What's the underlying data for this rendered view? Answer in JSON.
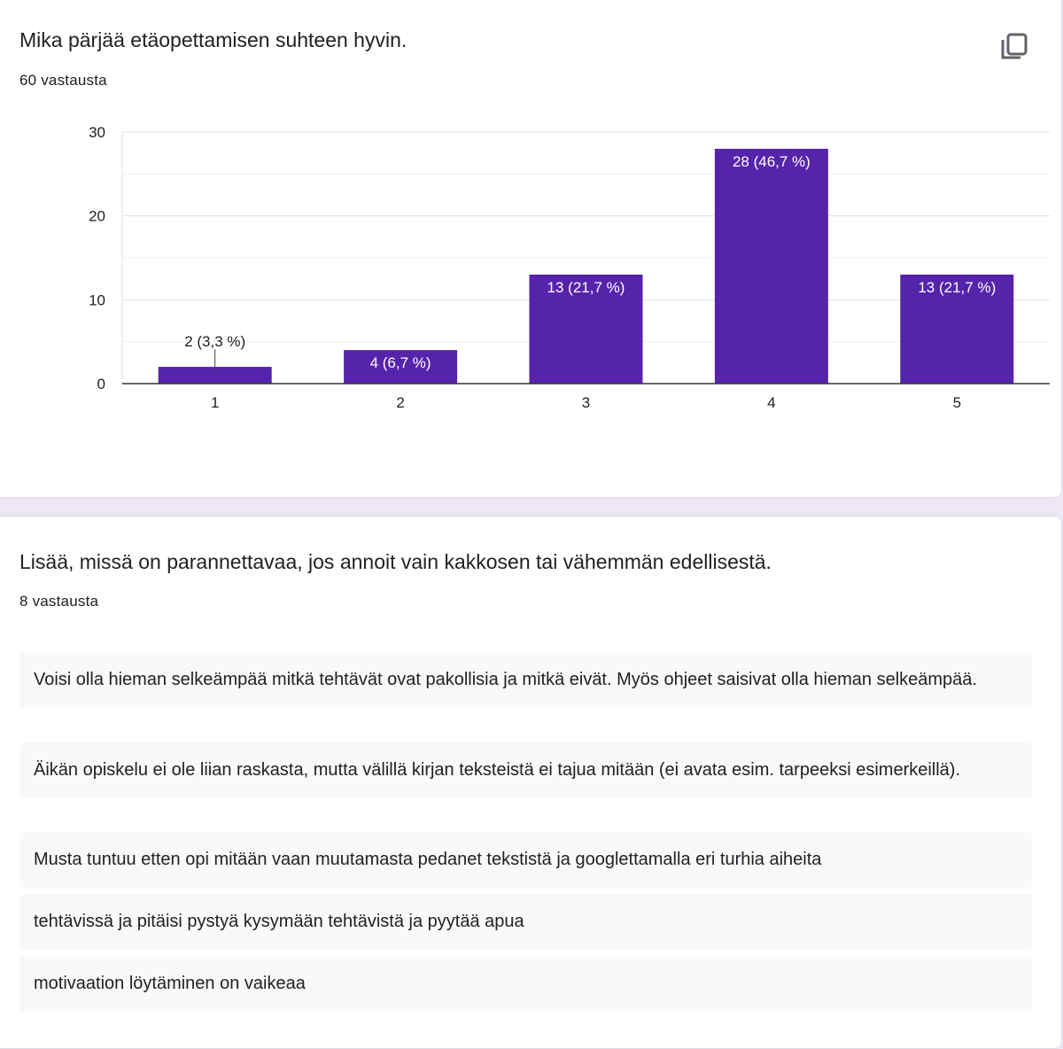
{
  "q1": {
    "title": "Mika pärjää etäopettamisen suhteen hyvin.",
    "count": "60 vastausta",
    "copy_icon": "copy-icon"
  },
  "chart_data": {
    "type": "bar",
    "categories": [
      "1",
      "2",
      "3",
      "4",
      "5"
    ],
    "values": [
      2,
      4,
      13,
      28,
      13
    ],
    "labels": [
      "2 (3,3 %)",
      "4 (6,7 %)",
      "13 (21,7 %)",
      "28 (46,7 %)",
      "13 (21,7 %)"
    ],
    "yticks": [
      "0",
      "10",
      "20",
      "30"
    ],
    "ylim": [
      0,
      30
    ],
    "grid": true,
    "bar_color": "#5624ab"
  },
  "q2": {
    "title": "Lisää, missä on parannettavaa, jos annoit vain kakkosen tai vähemmän edellisestä.",
    "count": "8 vastausta",
    "responses": [
      "Voisi olla hieman selkeämpää mitkä tehtävät ovat pakollisia ja mitkä eivät. Myös ohjeet saisivat olla hieman selkeämpää.",
      "Äikän opiskelu ei ole liian raskasta, mutta välillä kirjan teksteistä ei tajua mitään (ei avata esim. tarpeeksi esimerkeillä).",
      "Musta tuntuu etten opi mitään vaan muutamasta pedanet tekstistä ja googlettamalla eri turhia aiheita",
      "tehtävissä ja pitäisi pystyä kysymään tehtävistä ja pyytää apua",
      "motivaation löytäminen on vaikeaa"
    ]
  }
}
